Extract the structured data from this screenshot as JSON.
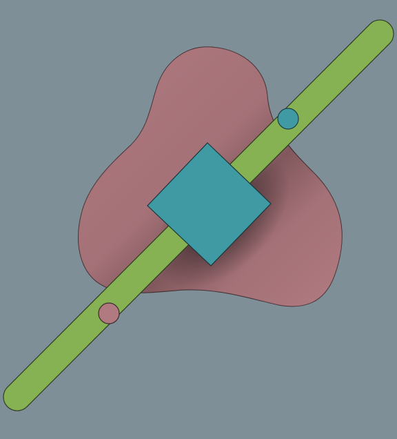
{
  "scene": {
    "background_color": "#7f8f97",
    "pieces": [
      {
        "name": "rounded-triangle-piece",
        "shape": "rounded-triangle",
        "color": "#b07a80"
      },
      {
        "name": "slider-bar",
        "shape": "rounded-rectangle",
        "color": "#86b253"
      },
      {
        "name": "pin-upper-teal",
        "shape": "circle",
        "color": "#3f9aa4"
      },
      {
        "name": "pin-lower-pink",
        "shape": "circle",
        "color": "#b07a80"
      },
      {
        "name": "square-block",
        "shape": "square",
        "color": "#3f9aa4"
      }
    ]
  }
}
